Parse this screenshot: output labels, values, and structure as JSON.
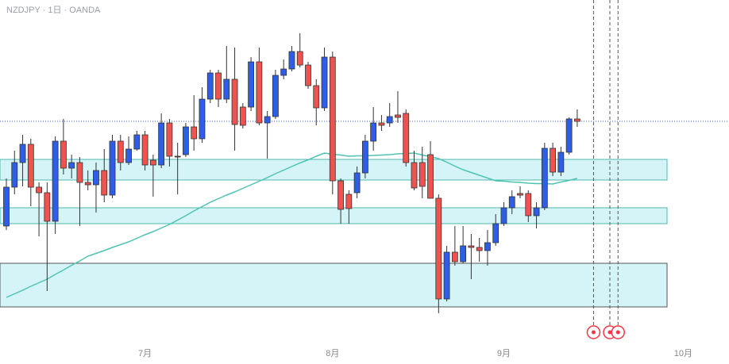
{
  "chart_data": {
    "type": "candlestick",
    "title": "NZDJPY · 1日 · OANDA",
    "categories": [
      null,
      null,
      null,
      null,
      null,
      null,
      null,
      null,
      null,
      null,
      null,
      null,
      null,
      null,
      null,
      null,
      null,
      "7月",
      null,
      null,
      null,
      null,
      null,
      null,
      null,
      null,
      null,
      null,
      null,
      null,
      null,
      null,
      null,
      null,
      null,
      null,
      null,
      null,
      null,
      null,
      "8月",
      null,
      null,
      null,
      null,
      null,
      null,
      null,
      null,
      null,
      null,
      null,
      null,
      null,
      null,
      null,
      null,
      null,
      null,
      null,
      null,
      "9月",
      null,
      null,
      null,
      null,
      null,
      null,
      null,
      null,
      null,
      null,
      null,
      null,
      null,
      null,
      null,
      null,
      null,
      null,
      null,
      null,
      null,
      "10月",
      null,
      null,
      null,
      null,
      null
    ],
    "open": [
      86.3,
      87.28,
      87.9,
      88.36,
      87.28,
      87.14,
      86.42,
      88.44,
      87.76,
      87.9,
      87.4,
      87.34,
      87.7,
      87.08,
      88.44,
      87.9,
      88.24,
      88.6,
      87.96,
      87.84,
      88.9,
      88.06,
      88.1,
      88.8,
      88.5,
      89.5,
      90.16,
      89.5,
      90.0,
      89.3,
      89.3,
      90.44,
      88.9,
      89.06,
      90.1,
      90.26,
      90.7,
      90.36,
      89.84,
      89.28,
      90.56,
      87.44,
      87.1,
      87.14,
      87.64,
      88.44,
      88.9,
      88.9,
      89.1,
      89.14,
      87.9,
      87.9,
      88.1,
      87.0,
      84.46,
      85.64,
      85.4,
      85.8,
      85.76,
      85.68,
      85.88,
      86.36,
      86.76,
      87.12,
      87.12,
      86.56,
      86.76,
      88.26,
      87.66,
      88.16,
      89.0,
      null,
      null,
      null,
      null,
      null,
      null,
      null,
      null,
      null,
      null,
      null,
      null,
      null,
      null,
      null,
      null,
      null,
      null
    ],
    "high": [
      87.5,
      88.2,
      88.6,
      88.5,
      87.4,
      87.4,
      88.56,
      89.0,
      88.1,
      88.04,
      87.7,
      87.9,
      88.24,
      88.6,
      88.6,
      88.56,
      88.7,
      88.7,
      88.1,
      89.14,
      89.0,
      88.4,
      88.9,
      89.6,
      89.8,
      90.24,
      90.24,
      90.84,
      90.8,
      89.4,
      90.56,
      90.8,
      89.2,
      90.24,
      90.5,
      90.84,
      91.16,
      90.44,
      90.0,
      90.8,
      90.7,
      87.5,
      87.2,
      87.8,
      88.6,
      89.3,
      89.1,
      89.4,
      89.7,
      89.24,
      88.2,
      88.3,
      88.44,
      87.1,
      85.8,
      86.3,
      86.3,
      86.1,
      86.0,
      86.2,
      86.6,
      86.9,
      87.2,
      87.3,
      87.2,
      86.9,
      88.4,
      88.4,
      88.3,
      89.04,
      89.24,
      null,
      null,
      null,
      null,
      null,
      null,
      null,
      null,
      null,
      null,
      null,
      null,
      null,
      null,
      null,
      null,
      null,
      null
    ],
    "low": [
      86.2,
      87.1,
      87.3,
      86.8,
      86.04,
      84.66,
      86.1,
      87.6,
      87.5,
      86.3,
      87.2,
      86.64,
      86.9,
      87.0,
      87.7,
      87.84,
      88.2,
      87.7,
      87.04,
      87.76,
      87.8,
      87.1,
      88.04,
      88.2,
      88.4,
      89.4,
      89.3,
      89.4,
      88.2,
      88.76,
      89.2,
      88.84,
      88.0,
      89.0,
      90.0,
      90.2,
      90.3,
      89.76,
      88.84,
      89.2,
      87.1,
      86.36,
      86.36,
      87.0,
      87.5,
      88.2,
      88.7,
      88.8,
      88.9,
      87.8,
      87.2,
      87.0,
      87.0,
      84.1,
      84.4,
      85.3,
      85.36,
      84.96,
      85.4,
      85.3,
      85.8,
      86.3,
      86.6,
      87.0,
      86.4,
      86.24,
      86.7,
      87.56,
      87.56,
      88.1,
      88.8,
      null,
      null,
      null,
      null,
      null,
      null,
      null,
      null,
      null,
      null,
      null,
      null,
      null,
      null,
      null,
      null,
      null,
      null
    ],
    "close": [
      87.28,
      87.9,
      88.36,
      87.28,
      87.14,
      86.42,
      88.44,
      87.76,
      87.9,
      87.4,
      87.34,
      87.7,
      87.08,
      88.44,
      87.9,
      88.24,
      88.6,
      87.84,
      87.84,
      88.9,
      88.06,
      88.04,
      88.8,
      88.5,
      89.5,
      90.16,
      89.5,
      90.0,
      88.86,
      88.84,
      90.44,
      88.9,
      89.06,
      90.1,
      90.26,
      90.7,
      90.36,
      89.84,
      89.28,
      90.56,
      87.44,
      86.72,
      86.74,
      87.64,
      88.44,
      88.9,
      88.84,
      89.06,
      89.04,
      87.9,
      87.26,
      87.3,
      87.0,
      84.46,
      85.64,
      85.4,
      85.8,
      85.76,
      85.68,
      85.88,
      86.36,
      86.76,
      87.04,
      87.08,
      86.56,
      86.76,
      88.26,
      87.66,
      88.16,
      89.0,
      88.94,
      null,
      null,
      null,
      null,
      null,
      null,
      null,
      null,
      null,
      null,
      null,
      null,
      null,
      null,
      null,
      null,
      null,
      null
    ],
    "up_color": "#2e5ee8",
    "down_color": "#ef5350",
    "series": [
      {
        "color": "#4fc3b3",
        "values": [
          84.5,
          84.59,
          84.68,
          84.78,
          84.87,
          84.96,
          85.08,
          85.19,
          85.31,
          85.42,
          85.54,
          85.61,
          85.68,
          85.76,
          85.83,
          85.9,
          85.99,
          86.08,
          86.16,
          86.25,
          86.34,
          86.45,
          86.56,
          86.68,
          86.79,
          86.9,
          86.99,
          87.08,
          87.16,
          87.25,
          87.34,
          87.43,
          87.52,
          87.62,
          87.71,
          87.8,
          87.89,
          87.97,
          88.06,
          88.14,
          88.11,
          88.09,
          88.06,
          88.07,
          88.07,
          88.08,
          88.09,
          88.1,
          88.12,
          88.13,
          88.14,
          88.09,
          88.05,
          88.0,
          87.91,
          87.81,
          87.72,
          87.65,
          87.58,
          87.51,
          87.44,
          87.43,
          87.41,
          87.4,
          87.38,
          87.37,
          87.37,
          87.36,
          87.41,
          87.45,
          87.5,
          null,
          null,
          null,
          null,
          null,
          null,
          null,
          null,
          null,
          null,
          null,
          null,
          null,
          null,
          null,
          null,
          null,
          null
        ]
      }
    ],
    "zones": [
      {
        "top": 87.98,
        "bottom": 87.46,
        "color": "#d5f4f7",
        "border": "#4fb8b0"
      },
      {
        "top": 86.76,
        "bottom": 86.36,
        "color": "#d5f4f7",
        "border": "#4fb8b0"
      },
      {
        "top": 85.36,
        "bottom": 84.26,
        "color": "#d5f4f7",
        "border": "#555555"
      }
    ],
    "ylim": [
      82.82,
      92
    ]
  }
}
